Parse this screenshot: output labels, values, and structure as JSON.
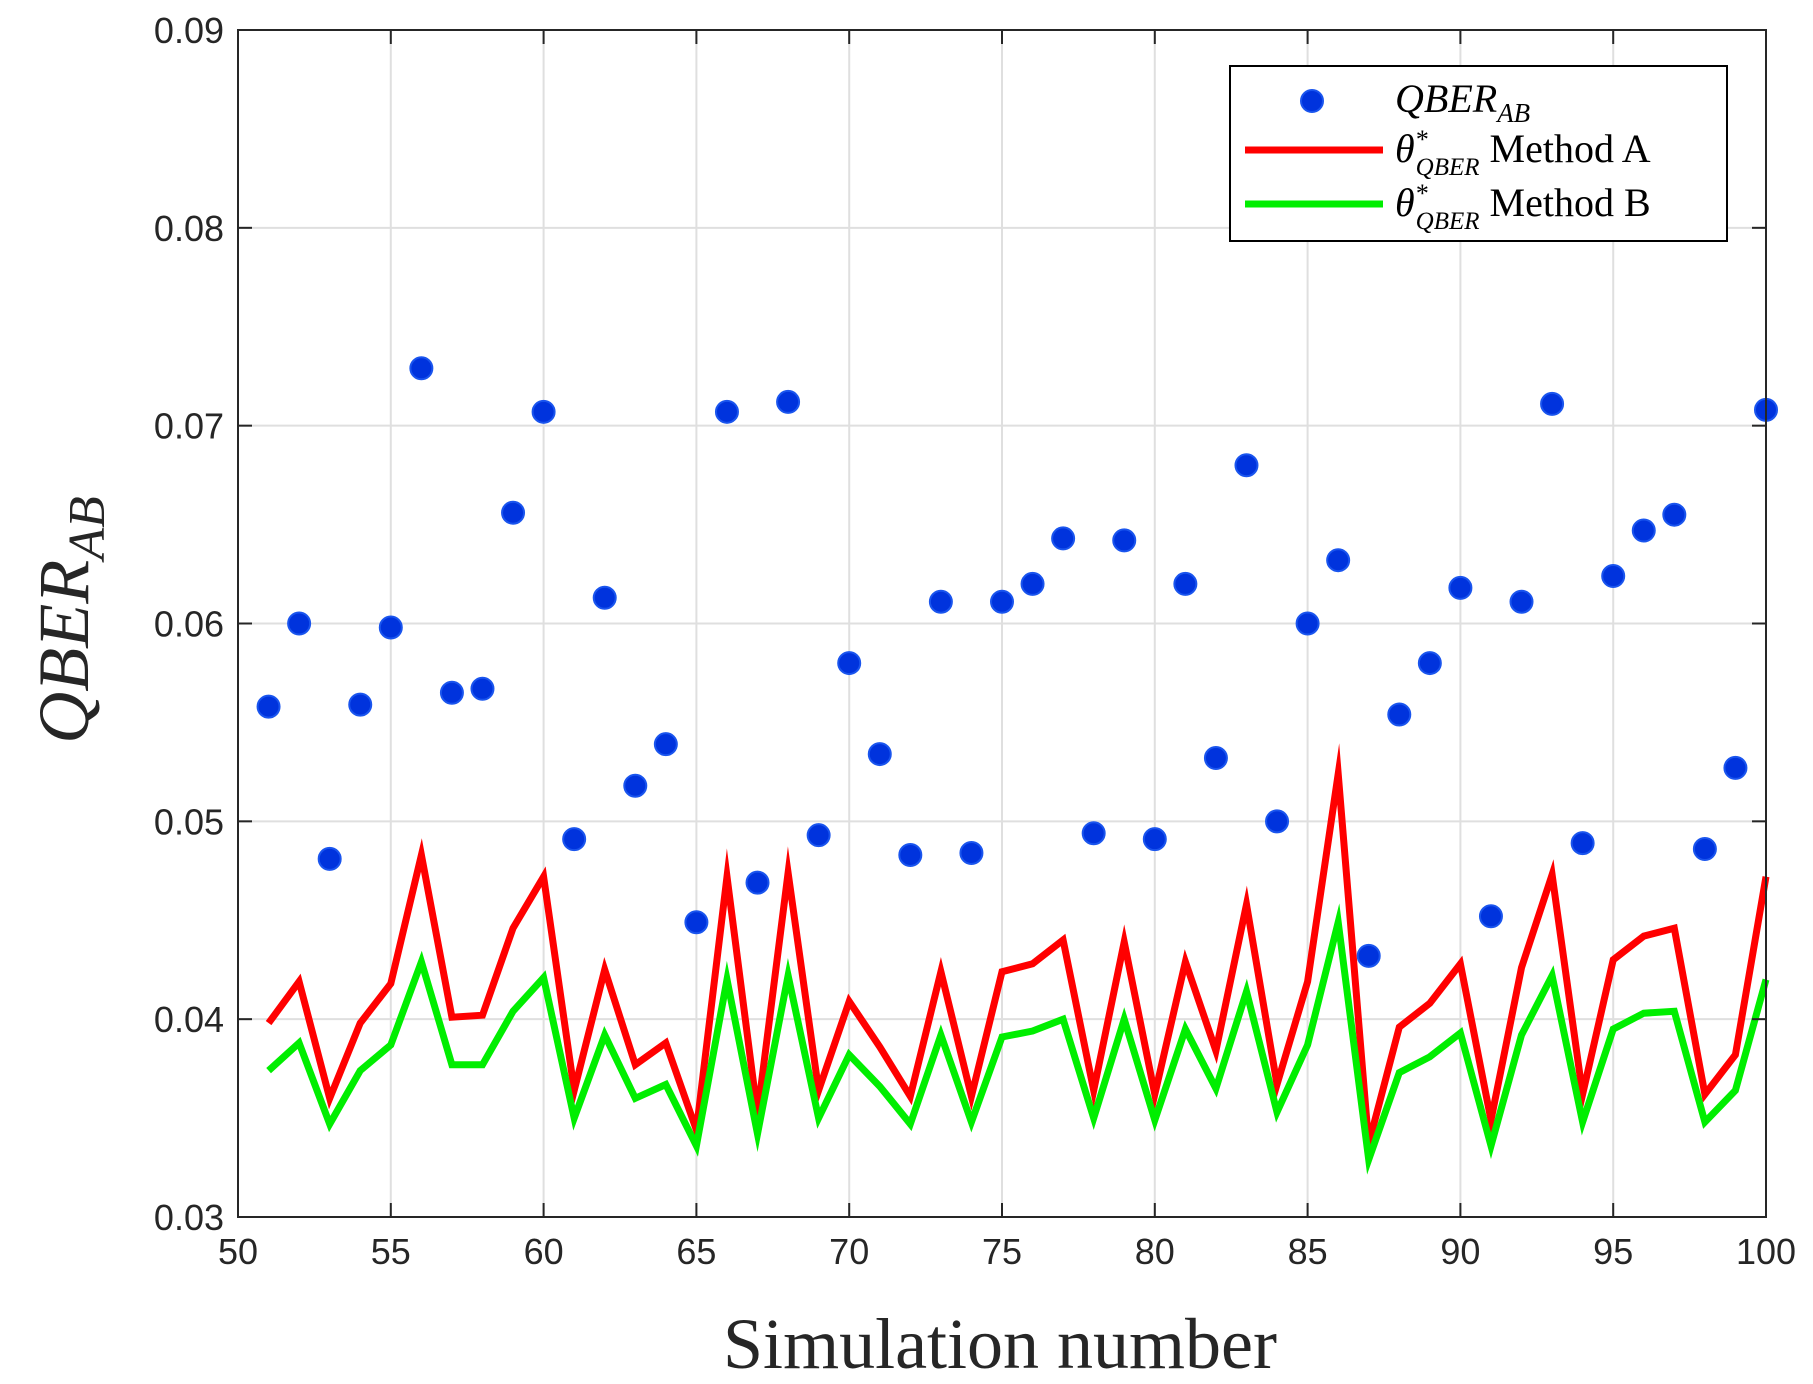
{
  "chart_data": {
    "type": "line",
    "xlabel": "Simulation number",
    "ylabel": "QBER",
    "ylabel_sub": "AB",
    "xlim": [
      50,
      100
    ],
    "ylim": [
      0.03,
      0.09
    ],
    "grid": true,
    "legend_position": "top-right",
    "xticks": [
      50,
      55,
      60,
      65,
      70,
      75,
      80,
      85,
      90,
      95,
      100
    ],
    "yticks": [
      0.03,
      0.04,
      0.05,
      0.06,
      0.07,
      0.08,
      0.09
    ],
    "xtick_labels": [
      "50",
      "55",
      "60",
      "65",
      "70",
      "75",
      "80",
      "85",
      "90",
      "95",
      "100"
    ],
    "ytick_labels": [
      "0.03",
      "0.04",
      "0.05",
      "0.06",
      "0.07",
      "0.08",
      "0.09"
    ],
    "x": [
      51,
      52,
      53,
      54,
      55,
      56,
      57,
      58,
      59,
      60,
      61,
      62,
      63,
      64,
      65,
      66,
      67,
      68,
      69,
      70,
      71,
      72,
      73,
      74,
      75,
      76,
      77,
      78,
      79,
      80,
      81,
      82,
      83,
      84,
      85,
      86,
      87,
      88,
      89,
      90,
      91,
      92,
      93,
      94,
      95,
      96,
      97,
      98,
      99,
      100
    ],
    "series": [
      {
        "name": "QBER_AB",
        "legend_main": "QBER",
        "legend_sub": "AB",
        "style": "markers",
        "color": "#0033dd",
        "values": [
          0.0558,
          0.06,
          0.0481,
          0.0559,
          0.0598,
          0.0729,
          0.0565,
          0.0567,
          0.0656,
          0.0707,
          0.0491,
          0.0613,
          0.0518,
          0.0539,
          0.0449,
          0.0707,
          0.0469,
          0.0712,
          0.0493,
          0.058,
          0.0534,
          0.0483,
          0.0611,
          0.0484,
          0.0611,
          0.062,
          0.0643,
          0.0494,
          0.0642,
          0.0491,
          0.062,
          0.0532,
          0.068,
          0.05,
          0.06,
          0.0632,
          0.0432,
          0.0554,
          0.058,
          0.0618,
          0.0452,
          0.0611,
          0.0711,
          0.0489,
          0.0624,
          0.0647,
          0.0655,
          0.0486,
          0.0527,
          0.0708
        ]
      },
      {
        "name": "theta*_QBER Method A",
        "legend_main": "θ",
        "legend_sup": "*",
        "legend_sub": "QBER",
        "legend_suffix": "Method A",
        "style": "line",
        "color": "#ff0000",
        "values": [
          0.0398,
          0.0419,
          0.036,
          0.0398,
          0.0418,
          0.0483,
          0.0401,
          0.0402,
          0.0446,
          0.0472,
          0.0364,
          0.0425,
          0.0377,
          0.0388,
          0.0344,
          0.0472,
          0.0352,
          0.0474,
          0.0364,
          0.0409,
          0.0386,
          0.0361,
          0.0424,
          0.0361,
          0.0424,
          0.0428,
          0.044,
          0.0364,
          0.0439,
          0.0362,
          0.0429,
          0.0384,
          0.0458,
          0.0367,
          0.0419,
          0.0524,
          0.0337,
          0.0396,
          0.0408,
          0.0428,
          0.0349,
          0.0426,
          0.0473,
          0.0362,
          0.043,
          0.0442,
          0.0446,
          0.0362,
          0.0382,
          0.0472
        ]
      },
      {
        "name": "theta*_QBER Method B",
        "legend_main": "θ",
        "legend_sup": "*",
        "legend_sub": "QBER",
        "legend_suffix": "Method B",
        "style": "line",
        "color": "#00ee00",
        "values": [
          0.0374,
          0.0388,
          0.0347,
          0.0374,
          0.0387,
          0.0429,
          0.0377,
          0.0377,
          0.0404,
          0.0421,
          0.035,
          0.0392,
          0.036,
          0.0367,
          0.0336,
          0.042,
          0.0342,
          0.0422,
          0.035,
          0.0382,
          0.0366,
          0.0347,
          0.0392,
          0.0348,
          0.0391,
          0.0394,
          0.04,
          0.035,
          0.04,
          0.0349,
          0.0395,
          0.0365,
          0.0414,
          0.0353,
          0.0387,
          0.0449,
          0.0329,
          0.0373,
          0.0381,
          0.0393,
          0.0336,
          0.0392,
          0.0422,
          0.0348,
          0.0395,
          0.0403,
          0.0404,
          0.0348,
          0.0364,
          0.042
        ]
      }
    ]
  }
}
